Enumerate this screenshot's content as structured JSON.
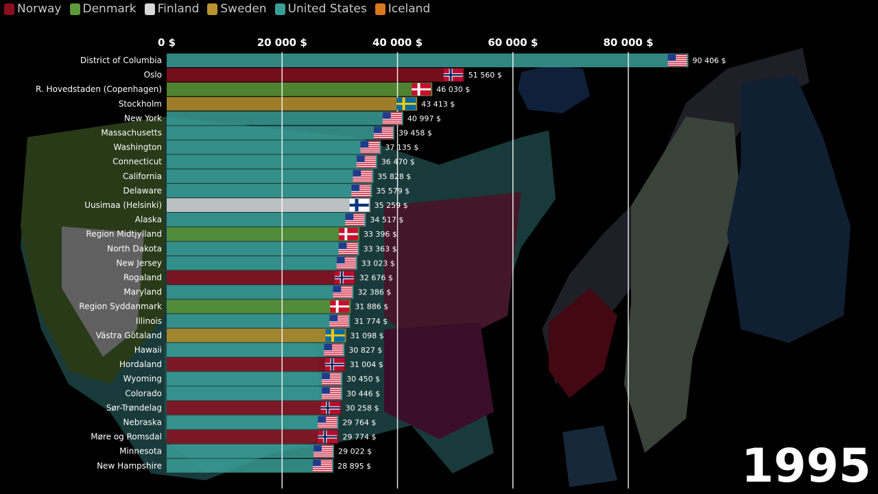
{
  "legend": [
    {
      "name": "Norway",
      "color": "#8b0f1f"
    },
    {
      "name": "Denmark",
      "color": "#5d9a3a"
    },
    {
      "name": "Finland",
      "color": "#d8d8d8"
    },
    {
      "name": "Sweden",
      "color": "#b8932e"
    },
    {
      "name": "United States",
      "color": "#3a9e98"
    },
    {
      "name": "Iceland",
      "color": "#d9781f"
    }
  ],
  "year": "1995",
  "colors": {
    "Norway": "#8b0f1f",
    "Denmark": "#5d9a3a",
    "Finland": "#d8d8d8",
    "Sweden": "#b8932e",
    "United States": "#3a9e98",
    "Iceland": "#d9781f"
  },
  "chart_data": {
    "type": "bar",
    "orientation": "horizontal",
    "title": "",
    "xlabel": "",
    "ylabel": "",
    "xlim": [
      0,
      100000
    ],
    "x_ticks": [
      0,
      20000,
      40000,
      60000,
      80000
    ],
    "x_tick_labels": [
      "0 $",
      "20 000 $",
      "40 000 $",
      "60 000 $",
      "80 000 $"
    ],
    "grid": true,
    "legend_position": "top-left",
    "bars": [
      {
        "label": "District of Columbia",
        "country": "United States",
        "value": 90406,
        "value_label": "90 406 $"
      },
      {
        "label": "Oslo",
        "country": "Norway",
        "value": 51560,
        "value_label": "51 560 $"
      },
      {
        "label": "R. Hovedstaden (Copenhagen)",
        "country": "Denmark",
        "value": 46030,
        "value_label": "46 030 $"
      },
      {
        "label": "Stockholm",
        "country": "Sweden",
        "value": 43413,
        "value_label": "43 413 $"
      },
      {
        "label": "New York",
        "country": "United States",
        "value": 40997,
        "value_label": "40 997 $"
      },
      {
        "label": "Massachusetts",
        "country": "United States",
        "value": 39458,
        "value_label": "39 458 $"
      },
      {
        "label": "Washington",
        "country": "United States",
        "value": 37135,
        "value_label": "37 135 $"
      },
      {
        "label": "Connecticut",
        "country": "United States",
        "value": 36470,
        "value_label": "36 470 $"
      },
      {
        "label": "California",
        "country": "United States",
        "value": 35828,
        "value_label": "35 828 $"
      },
      {
        "label": "Delaware",
        "country": "United States",
        "value": 35579,
        "value_label": "35 579 $"
      },
      {
        "label": "Uusimaa (Helsinki)",
        "country": "Finland",
        "value": 35259,
        "value_label": "35 259 $"
      },
      {
        "label": "Alaska",
        "country": "United States",
        "value": 34517,
        "value_label": "34 517 $"
      },
      {
        "label": "Region Midtjylland",
        "country": "Denmark",
        "value": 33396,
        "value_label": "33 396 $"
      },
      {
        "label": "North Dakota",
        "country": "United States",
        "value": 33363,
        "value_label": "33 363 $"
      },
      {
        "label": "New Jersey",
        "country": "United States",
        "value": 33023,
        "value_label": "33 023 $"
      },
      {
        "label": "Rogaland",
        "country": "Norway",
        "value": 32676,
        "value_label": "32 676 $"
      },
      {
        "label": "Maryland",
        "country": "United States",
        "value": 32386,
        "value_label": "32 386 $"
      },
      {
        "label": "Region Syddanmark",
        "country": "Denmark",
        "value": 31886,
        "value_label": "31 886 $"
      },
      {
        "label": "Illinois",
        "country": "United States",
        "value": 31774,
        "value_label": "31 774 $"
      },
      {
        "label": "Västra Götaland",
        "country": "Sweden",
        "value": 31098,
        "value_label": "31 098 $"
      },
      {
        "label": "Hawaii",
        "country": "United States",
        "value": 30827,
        "value_label": "30 827 $"
      },
      {
        "label": "Hordaland",
        "country": "Norway",
        "value": 31004,
        "value_label": "31 004 $"
      },
      {
        "label": "Wyoming",
        "country": "United States",
        "value": 30450,
        "value_label": "30 450 $"
      },
      {
        "label": "Colorado",
        "country": "United States",
        "value": 30446,
        "value_label": "30 446 $"
      },
      {
        "label": "Sør-Trøndelag",
        "country": "Norway",
        "value": 30258,
        "value_label": "30 258 $"
      },
      {
        "label": "Nebraska",
        "country": "United States",
        "value": 29764,
        "value_label": "29 764 $"
      },
      {
        "label": "Møre og Romsdal",
        "country": "Norway",
        "value": 29774,
        "value_label": "29 774 $"
      },
      {
        "label": "Minnesota",
        "country": "United States",
        "value": 29022,
        "value_label": "29 022 $"
      },
      {
        "label": "New Hampshire",
        "country": "United States",
        "value": 28895,
        "value_label": "28 895 $"
      }
    ]
  }
}
